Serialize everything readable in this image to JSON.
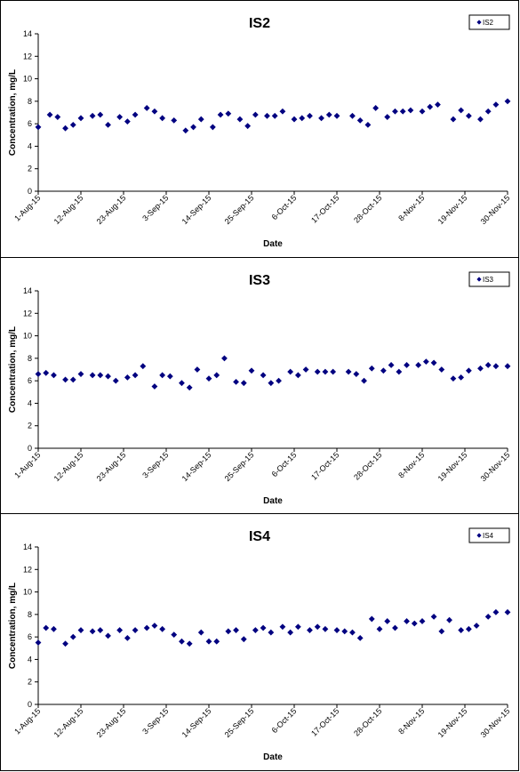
{
  "chart_data": [
    {
      "type": "scatter",
      "title": "IS2",
      "xlabel": "Date",
      "ylabel": "Concentration, mg/L",
      "ylim": [
        0,
        14
      ],
      "yticks": [
        "0",
        "2",
        "4",
        "6",
        "8",
        "10",
        "12",
        "14"
      ],
      "xlim": [
        "2015-08-01",
        "2015-11-30"
      ],
      "xticks": [
        "1-Aug-15",
        "12-Aug-15",
        "23-Aug-15",
        "3-Sep-15",
        "14-Sep-15",
        "25-Sep-15",
        "6-Oct-15",
        "17-Oct-15",
        "28-Oct-15",
        "8-Nov-15",
        "19-Nov-15",
        "30-Nov-15"
      ],
      "grid": false,
      "legend_position": "top-right",
      "color": "#000080",
      "series": [
        {
          "name": "IS2",
          "x": [
            "2015-08-01",
            "2015-08-04",
            "2015-08-06",
            "2015-08-08",
            "2015-08-10",
            "2015-08-12",
            "2015-08-15",
            "2015-08-17",
            "2015-08-19",
            "2015-08-22",
            "2015-08-24",
            "2015-08-26",
            "2015-08-29",
            "2015-08-31",
            "2015-09-02",
            "2015-09-05",
            "2015-09-08",
            "2015-09-10",
            "2015-09-12",
            "2015-09-15",
            "2015-09-17",
            "2015-09-19",
            "2015-09-22",
            "2015-09-24",
            "2015-09-26",
            "2015-09-29",
            "2015-10-01",
            "2015-10-03",
            "2015-10-06",
            "2015-10-08",
            "2015-10-10",
            "2015-10-13",
            "2015-10-15",
            "2015-10-17",
            "2015-10-21",
            "2015-10-23",
            "2015-10-25",
            "2015-10-27",
            "2015-10-30",
            "2015-11-01",
            "2015-11-03",
            "2015-11-05",
            "2015-11-08",
            "2015-11-10",
            "2015-11-12",
            "2015-11-16",
            "2015-11-18",
            "2015-11-20",
            "2015-11-23",
            "2015-11-25",
            "2015-11-27",
            "2015-11-30"
          ],
          "y": [
            5.7,
            6.8,
            6.6,
            5.6,
            5.9,
            6.5,
            6.7,
            6.8,
            5.9,
            6.6,
            6.2,
            6.8,
            7.4,
            7.1,
            6.5,
            6.3,
            5.4,
            5.7,
            6.4,
            5.7,
            6.8,
            6.9,
            6.4,
            5.8,
            6.8,
            6.7,
            6.7,
            7.1,
            6.4,
            6.5,
            6.7,
            6.5,
            6.8,
            6.7,
            6.7,
            6.3,
            5.9,
            7.4,
            6.6,
            7.1,
            7.1,
            7.2,
            7.1,
            7.5,
            7.7,
            6.4,
            7.2,
            6.7,
            6.4,
            7.1,
            7.7,
            8.0
          ]
        }
      ]
    },
    {
      "type": "scatter",
      "title": "IS3",
      "xlabel": "Date",
      "ylabel": "Concentration, mg/L",
      "ylim": [
        0,
        14
      ],
      "yticks": [
        "0",
        "2",
        "4",
        "6",
        "8",
        "10",
        "12",
        "14"
      ],
      "xlim": [
        "2015-08-01",
        "2015-11-30"
      ],
      "xticks": [
        "1-Aug-15",
        "12-Aug-15",
        "23-Aug-15",
        "3-Sep-15",
        "14-Sep-15",
        "25-Sep-15",
        "6-Oct-15",
        "17-Oct-15",
        "28-Oct-15",
        "8-Nov-15",
        "19-Nov-15",
        "30-Nov-15"
      ],
      "grid": false,
      "legend_position": "top-right",
      "color": "#000080",
      "series": [
        {
          "name": "IS3",
          "x": [
            "2015-08-01",
            "2015-08-03",
            "2015-08-05",
            "2015-08-08",
            "2015-08-10",
            "2015-08-12",
            "2015-08-15",
            "2015-08-17",
            "2015-08-19",
            "2015-08-21",
            "2015-08-24",
            "2015-08-26",
            "2015-08-28",
            "2015-08-31",
            "2015-09-02",
            "2015-09-04",
            "2015-09-07",
            "2015-09-09",
            "2015-09-11",
            "2015-09-14",
            "2015-09-16",
            "2015-09-18",
            "2015-09-21",
            "2015-09-23",
            "2015-09-25",
            "2015-09-28",
            "2015-09-30",
            "2015-10-02",
            "2015-10-05",
            "2015-10-07",
            "2015-10-09",
            "2015-10-12",
            "2015-10-14",
            "2015-10-16",
            "2015-10-20",
            "2015-10-22",
            "2015-10-24",
            "2015-10-26",
            "2015-10-29",
            "2015-10-31",
            "2015-11-02",
            "2015-11-04",
            "2015-11-07",
            "2015-11-09",
            "2015-11-11",
            "2015-11-13",
            "2015-11-16",
            "2015-11-18",
            "2015-11-20",
            "2015-11-23",
            "2015-11-25",
            "2015-11-27",
            "2015-11-30"
          ],
          "y": [
            6.6,
            6.7,
            6.5,
            6.1,
            6.1,
            6.6,
            6.5,
            6.5,
            6.4,
            6.0,
            6.3,
            6.5,
            7.3,
            5.5,
            6.5,
            6.4,
            5.8,
            5.4,
            7.0,
            6.2,
            6.5,
            8.0,
            5.9,
            5.8,
            6.9,
            6.5,
            5.8,
            6.0,
            6.8,
            6.5,
            7.0,
            6.8,
            6.8,
            6.8,
            6.8,
            6.6,
            6.0,
            7.1,
            6.9,
            7.4,
            6.8,
            7.4,
            7.4,
            7.7,
            7.6,
            7.0,
            6.2,
            6.3,
            6.9,
            7.1,
            7.4,
            7.3,
            7.3
          ]
        }
      ]
    },
    {
      "type": "scatter",
      "title": "IS4",
      "xlabel": "Date",
      "ylabel": "Concentration, mg/L",
      "ylim": [
        0,
        14
      ],
      "yticks": [
        "0",
        "2",
        "4",
        "6",
        "8",
        "10",
        "12",
        "14"
      ],
      "xlim": [
        "2015-08-01",
        "2015-11-30"
      ],
      "xticks": [
        "1-Aug-15",
        "12-Aug-15",
        "23-Aug-15",
        "3-Sep-15",
        "14-Sep-15",
        "25-Sep-15",
        "6-Oct-15",
        "17-Oct-15",
        "28-Oct-15",
        "8-Nov-15",
        "19-Nov-15",
        "30-Nov-15"
      ],
      "grid": false,
      "legend_position": "top-right",
      "color": "#000080",
      "series": [
        {
          "name": "IS4",
          "x": [
            "2015-08-01",
            "2015-08-03",
            "2015-08-05",
            "2015-08-08",
            "2015-08-10",
            "2015-08-12",
            "2015-08-15",
            "2015-08-17",
            "2015-08-19",
            "2015-08-22",
            "2015-08-24",
            "2015-08-26",
            "2015-08-29",
            "2015-08-31",
            "2015-09-02",
            "2015-09-05",
            "2015-09-07",
            "2015-09-09",
            "2015-09-12",
            "2015-09-14",
            "2015-09-16",
            "2015-09-19",
            "2015-09-21",
            "2015-09-23",
            "2015-09-26",
            "2015-09-28",
            "2015-09-30",
            "2015-10-03",
            "2015-10-05",
            "2015-10-07",
            "2015-10-10",
            "2015-10-12",
            "2015-10-14",
            "2015-10-17",
            "2015-10-19",
            "2015-10-21",
            "2015-10-23",
            "2015-10-26",
            "2015-10-28",
            "2015-10-30",
            "2015-11-01",
            "2015-11-04",
            "2015-11-06",
            "2015-11-08",
            "2015-11-11",
            "2015-11-13",
            "2015-11-15",
            "2015-11-18",
            "2015-11-20",
            "2015-11-22",
            "2015-11-25",
            "2015-11-27",
            "2015-11-30"
          ],
          "y": [
            5.5,
            6.8,
            6.7,
            5.4,
            6.0,
            6.6,
            6.5,
            6.6,
            6.1,
            6.6,
            5.9,
            6.6,
            6.8,
            7.0,
            6.7,
            6.2,
            5.6,
            5.4,
            6.4,
            5.6,
            5.6,
            6.5,
            6.6,
            5.8,
            6.6,
            6.8,
            6.4,
            6.9,
            6.4,
            6.9,
            6.6,
            6.9,
            6.7,
            6.6,
            6.5,
            6.4,
            5.9,
            7.6,
            6.7,
            7.4,
            6.8,
            7.4,
            7.2,
            7.4,
            7.8,
            6.5,
            7.5,
            6.6,
            6.7,
            7.0,
            7.8,
            8.2,
            8.2
          ]
        }
      ]
    }
  ]
}
